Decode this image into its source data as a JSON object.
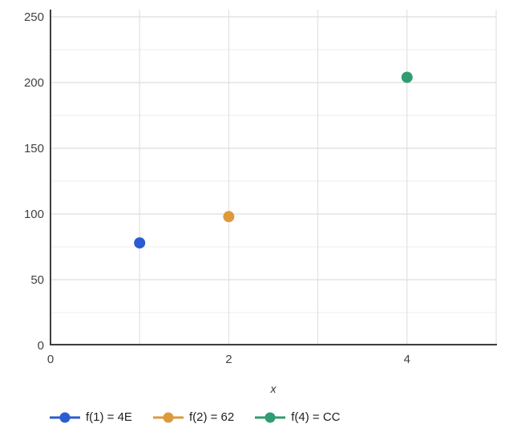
{
  "chart_data": {
    "type": "scatter",
    "title": "",
    "xlabel": "x",
    "ylabel": "",
    "grid": true,
    "legend_position": "bottom",
    "x_axis": {
      "min": 0,
      "max": 5,
      "grid_step": 1,
      "labeled_ticks": [
        0,
        2,
        4
      ]
    },
    "y_axis": {
      "min": 0,
      "max": 250,
      "minor_step": 25,
      "major_step": 50,
      "labeled_ticks": [
        0,
        50,
        100,
        150,
        200,
        250
      ]
    },
    "series": [
      {
        "name": "f(1) = 4E",
        "color": "#2b5cd1",
        "point": {
          "x": 1,
          "y": 78
        }
      },
      {
        "name": "f(2) = 62",
        "color": "#dd9a3d",
        "point": {
          "x": 2,
          "y": 98
        }
      },
      {
        "name": "f(4) = CC",
        "color": "#2f9d6f",
        "point": {
          "x": 4,
          "y": 204
        }
      }
    ]
  },
  "colors": {
    "background": "#ffffff",
    "axis": "#3f3f3f",
    "grid_major": "#d6d6d6",
    "grid_minor": "#ececec",
    "grid_vertical": "#dcdcdc",
    "tick_label": "#424242",
    "legend_text": "#1f1f1f"
  }
}
